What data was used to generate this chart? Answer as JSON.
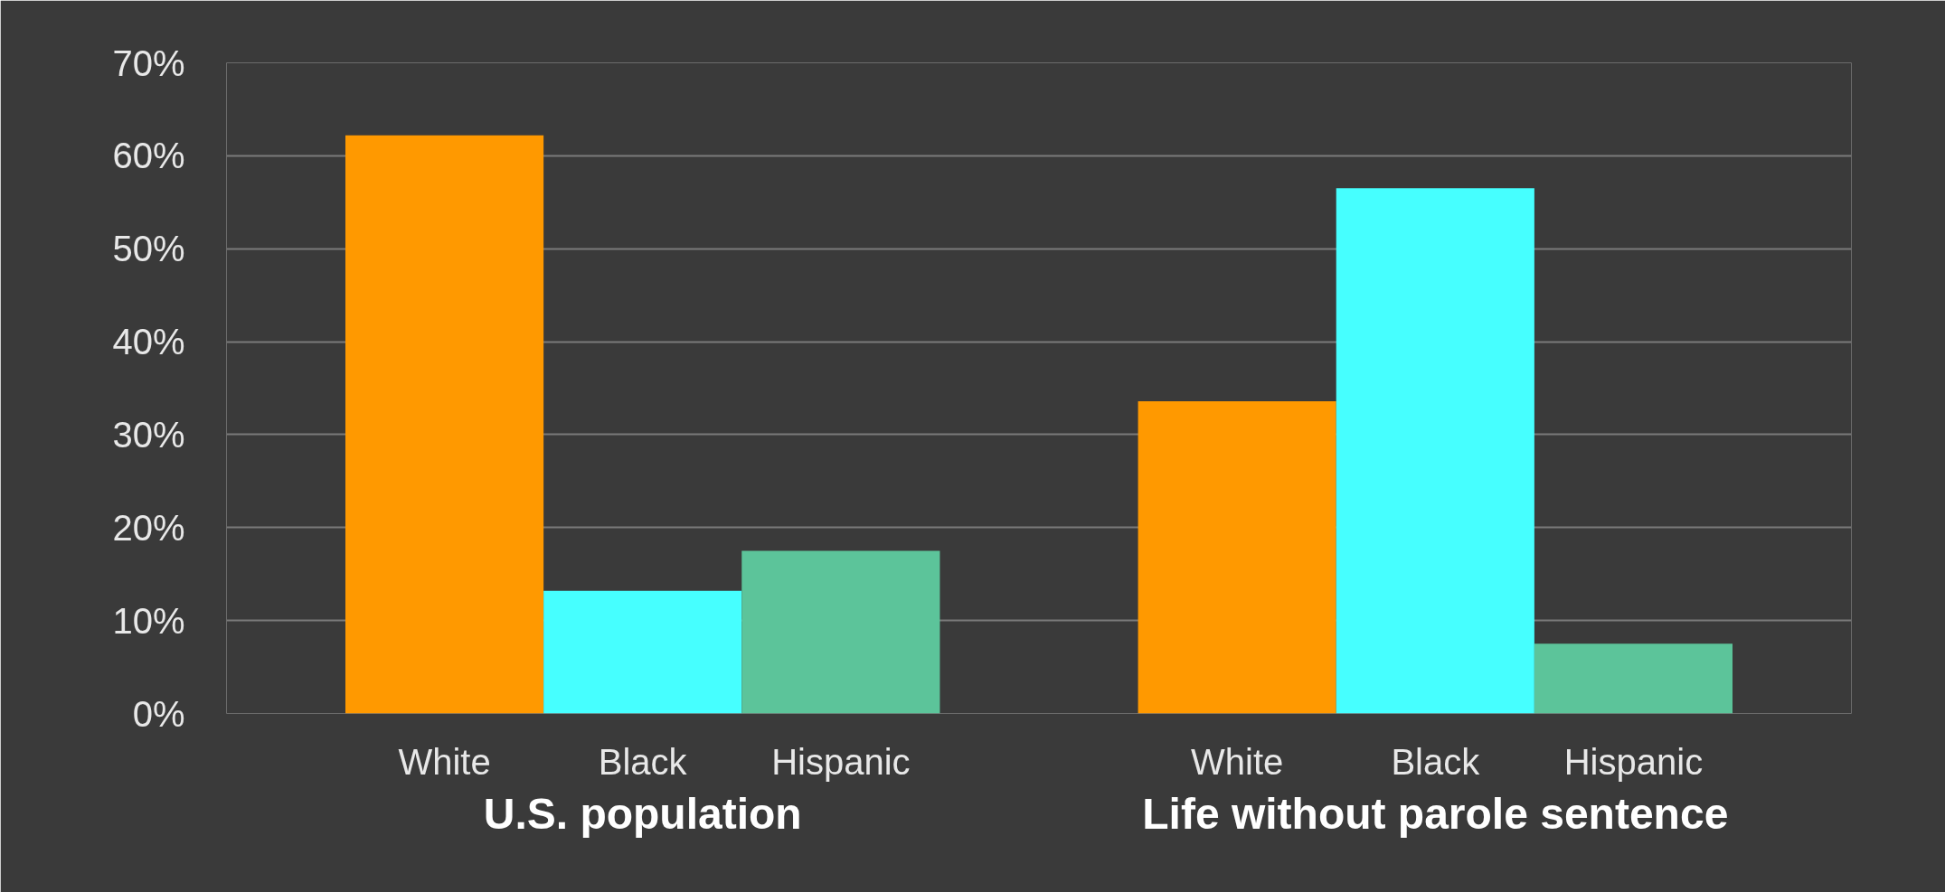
{
  "chart_data": {
    "type": "bar",
    "categories": [
      "White",
      "Black",
      "Hispanic",
      null,
      "White",
      "Black",
      "Hispanic"
    ],
    "values": [
      62.2,
      13.2,
      17.5,
      null,
      33.6,
      56.5,
      7.5
    ],
    "colors": [
      "#ff9900",
      "#46ffff",
      "#5cc49a",
      null,
      "#ff9900",
      "#46ffff",
      "#5cc49a"
    ],
    "annotations": [
      "U.S. population",
      "Life without parole sentence"
    ],
    "ylim": [
      0,
      70
    ],
    "yticks": [
      {
        "value": 0,
        "label": "0%"
      },
      {
        "value": 10,
        "label": "10%"
      },
      {
        "value": 20,
        "label": "20%"
      },
      {
        "value": 30,
        "label": "30%"
      },
      {
        "value": 40,
        "label": "40%"
      },
      {
        "value": 50,
        "label": "50%"
      },
      {
        "value": 60,
        "label": "60%"
      },
      {
        "value": 70,
        "label": "70%"
      }
    ],
    "grid": "y"
  }
}
